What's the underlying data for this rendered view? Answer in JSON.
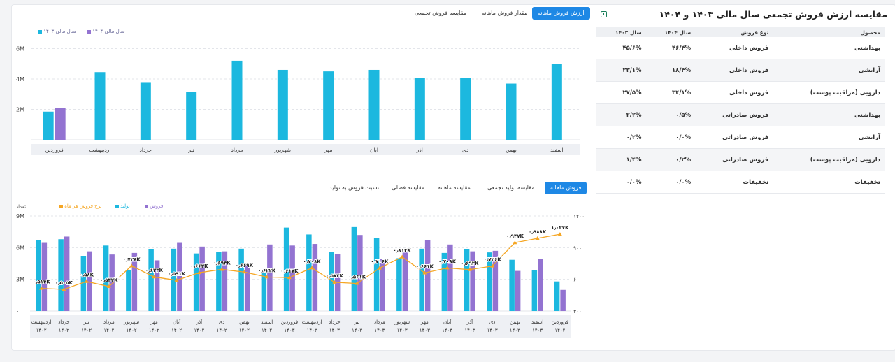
{
  "top_tabs": [
    "ارزش فروش ماهانه",
    "مقدار فروش ماهانه",
    "مقایسه فروش تجمعی"
  ],
  "bottom_tabs": [
    "فروش ماهانه",
    "مقایسه تولید تجمعی",
    "مقایسه ماهانه",
    "مقایسه فصلی",
    "نسبت فروش به تولید"
  ],
  "colors": {
    "accent": "#1e88e5",
    "cyan": "#1cb8df",
    "purple": "#9373d1",
    "orange": "#f5a623"
  },
  "chart_data": [
    {
      "type": "bar",
      "legend": [
        "سال مالی ۱۴۰۳",
        "سال مالی ۱۴۰۴"
      ],
      "legend_placement": "top-left",
      "categories": [
        "فروردین",
        "اردیبهشت",
        "خرداد",
        "تیر",
        "مرداد",
        "شهریور",
        "مهر",
        "آبان",
        "آذر",
        "دی",
        "بهمن",
        "اسفند"
      ],
      "series": [
        {
          "name": "سال مالی ۱۴۰۳",
          "color": "#1cb8df",
          "values": [
            1.85,
            4.45,
            3.75,
            3.15,
            5.2,
            4.6,
            4.5,
            4.6,
            4.05,
            4.05,
            3.7,
            5.0
          ]
        },
        {
          "name": "سال مالی ۱۴۰۴",
          "color": "#9373d1",
          "values": [
            2.1,
            null,
            null,
            null,
            null,
            null,
            null,
            null,
            null,
            null,
            null,
            null
          ]
        }
      ],
      "yticks": [
        "۰",
        "2M",
        "4M",
        "6M"
      ],
      "ylim": [
        0,
        6.3
      ],
      "grid": true
    },
    {
      "type": "bar",
      "legend": [
        "فروش",
        "تولید",
        "نرخ فروش هر ماه"
      ],
      "legend_placement": "top-left",
      "y_left_label": "تعداد",
      "yticks_left": [
        "۰",
        "3M",
        "6M",
        "9M"
      ],
      "yticks_right": [
        "۳۰۰",
        "۶۰۰",
        "۹۰۰",
        "۱۲۰۰"
      ],
      "ylim_left": [
        0,
        9
      ],
      "ylim_right": [
        300,
        1200
      ],
      "categories": [
        [
          "اردیبهشت",
          "۱۴۰۲"
        ],
        [
          "خرداد",
          "۱۴۰۲"
        ],
        [
          "تیر",
          "۱۴۰۲"
        ],
        [
          "مرداد",
          "۱۴۰۲"
        ],
        [
          "شهریور",
          "۱۴۰۲"
        ],
        [
          "مهر",
          "۱۴۰۲"
        ],
        [
          "آبان",
          "۱۴۰۲"
        ],
        [
          "آذر",
          "۱۴۰۲"
        ],
        [
          "دی",
          "۱۴۰۲"
        ],
        [
          "بهمن",
          "۱۴۰۲"
        ],
        [
          "اسفند",
          "۱۴۰۲"
        ],
        [
          "فروردین",
          "۱۴۰۳"
        ],
        [
          "اردیبهشت",
          "۱۴۰۳"
        ],
        [
          "خرداد",
          "۱۴۰۳"
        ],
        [
          "تیر",
          "۱۴۰۳"
        ],
        [
          "مرداد",
          "۱۴۰۳"
        ],
        [
          "شهریور",
          "۱۴۰۳"
        ],
        [
          "مهر",
          "۱۴۰۳"
        ],
        [
          "آبان",
          "۱۴۰۳"
        ],
        [
          "آذر",
          "۱۴۰۳"
        ],
        [
          "دی",
          "۱۴۰۳"
        ],
        [
          "بهمن",
          "۱۴۰۳"
        ],
        [
          "اسفند",
          "۱۴۰۳"
        ],
        [
          "فروردین",
          "۱۴۰۴"
        ]
      ],
      "series": [
        {
          "name": "تولید",
          "color": "#1cb8df",
          "values": [
            6.75,
            6.8,
            5.2,
            6.2,
            3.9,
            5.85,
            5.9,
            5.45,
            5.6,
            5.9,
            3.65,
            7.9,
            7.25,
            5.6,
            7.95,
            6.9,
            5.0,
            5.9,
            5.5,
            5.85,
            5.55,
            4.85,
            3.9,
            2.8
          ]
        },
        {
          "name": "فروش",
          "color": "#9373d1",
          "values": [
            6.45,
            7.05,
            5.65,
            5.35,
            5.5,
            4.8,
            6.45,
            6.1,
            5.65,
            4.55,
            6.3,
            6.2,
            6.35,
            5.4,
            7.2,
            4.95,
            5.6,
            6.7,
            6.3,
            5.65,
            5.7,
            3.8,
            4.9,
            2.0
          ]
        },
        {
          "name": "نرخ فروش هر ماه",
          "color": "#f5a623",
          "values": [
            514,
            505,
            580,
            532,
            728,
            623,
            591,
            663,
            694,
            669,
            622,
            617,
            708,
            572,
            561,
            706,
            812,
            661,
            708,
            692,
            726,
            947,
            988,
            1027
          ]
        }
      ],
      "point_labels": [
        "۰٫۵۱۴K",
        "۰٫۵۰۵K",
        "۰٫۵۸K",
        "۰٫۵۳۲K",
        "۰٫۷۲۸K",
        "۰٫۶۲۳K",
        "۰٫۵۹۱K",
        "۰٫۶۶۳K",
        "۰٫۶۹۴K",
        "۰٫۶۶۹K",
        "۰٫۶۲۲K",
        "۰٫۶۱۷K",
        "۰٫۷۰۸K",
        "۰٫۵۷۲K",
        "۰٫۵۶۱K",
        "۰٫۷۰۶K",
        "۰٫۸۱۲K",
        "۰٫۶۶۱K",
        "۰٫۷۰۸K",
        "۰٫۶۹۲K",
        "۰٫۷۲۶K",
        "۰٫۹۴۷K",
        "۰٫۹۸۸K",
        "۱٫۰۲۷K"
      ],
      "grid": true
    }
  ],
  "table": {
    "title": "مقایسه ارزش فروش تجمعی سال مالی ۱۴۰۳ و ۱۴۰۴",
    "columns": [
      "محصول",
      "نوع فروش",
      "سال ۱۴۰۴",
      "سال ۱۴۰۳"
    ],
    "rows": [
      [
        "بهداشتی",
        "فروش داخلی",
        "۴۶/۴%",
        "۴۵/۶%"
      ],
      [
        "آرایشی",
        "فروش داخلی",
        "۱۸/۴%",
        "۲۳/۱%"
      ],
      [
        "دارویی (مراقبت پوست)",
        "فروش داخلی",
        "۳۴/۱%",
        "۲۷/۵%"
      ],
      [
        "بهداشتی",
        "فروش صادراتی",
        "۰/۵%",
        "۲/۲%"
      ],
      [
        "آرایشی",
        "فروش صادراتی",
        "۰/۰%",
        "۰/۲%"
      ],
      [
        "دارویی (مراقبت پوست)",
        "فروش صادراتی",
        "۰/۲%",
        "۱/۴%"
      ],
      [
        "تخفیفات",
        "تخفیفات",
        "۰/۰%",
        "۰/۰%"
      ]
    ]
  }
}
